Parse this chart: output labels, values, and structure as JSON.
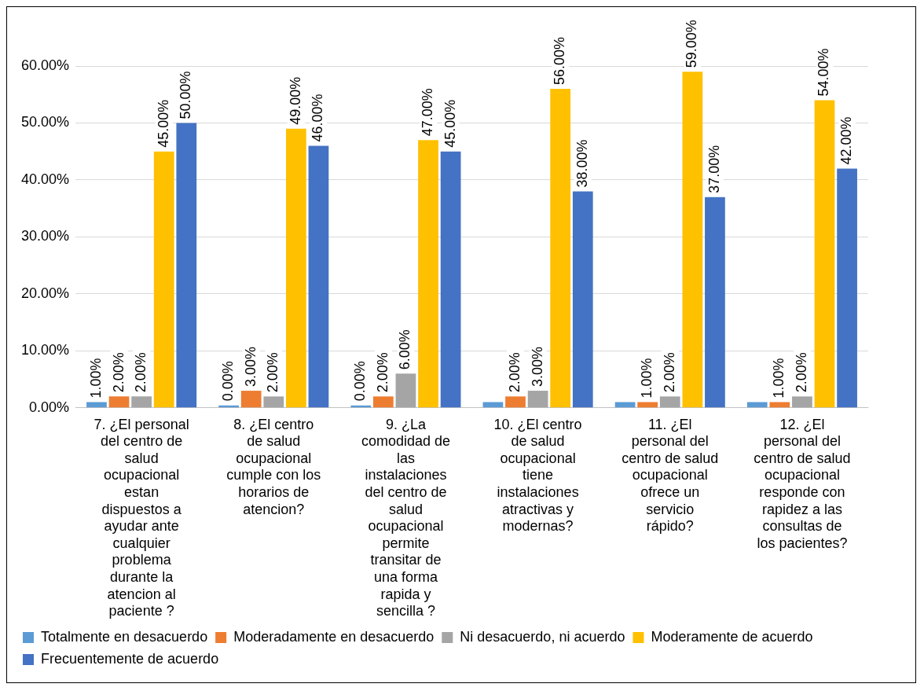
{
  "chart_data": {
    "type": "bar",
    "categories": [
      "7. ¿El personal del centro de salud ocupacional estan dispuestos a ayudar ante cualquier problema durante la atencion al paciente ?",
      "8. ¿El centro de salud ocupacional cumple con los horarios de atencion?",
      "9. ¿La comodidad de las instalaciones del centro de salud ocupacional permite transitar de una forma rapida y sencilla ?",
      "10. ¿El centro de salud ocupacional tiene instalaciones atractivas y modernas?",
      "11. ¿El personal del centro de salud ocupacional ofrece un servicio rápido?",
      "12. ¿El personal del centro de salud ocupacional responde con rapidez a las consultas de los pacientes?"
    ],
    "series": [
      {
        "name": "Totalmente en desacuerdo",
        "color": "#5b9bd5",
        "values": [
          1,
          0,
          0,
          1,
          1,
          1
        ],
        "value_labels": [
          "1.00%",
          "0.00%",
          "0.00%",
          null,
          null,
          null
        ]
      },
      {
        "name": "Moderadamente en desacuerdo",
        "color": "#ed7d31",
        "values": [
          2,
          3,
          2,
          2,
          1,
          1
        ],
        "value_labels": [
          "2.00%",
          "3.00%",
          "2.00%",
          "2.00%",
          "1.00%",
          "1.00%"
        ]
      },
      {
        "name": "Ni desacuerdo, ni acuerdo",
        "color": "#a5a5a5",
        "values": [
          2,
          2,
          6,
          3,
          2,
          2
        ],
        "value_labels": [
          "2.00%",
          "2.00%",
          "6.00%",
          "3.00%",
          "2.00%",
          "2.00%"
        ]
      },
      {
        "name": "Moderamente de acuerdo",
        "color": "#ffc000",
        "values": [
          45,
          49,
          47,
          56,
          59,
          54
        ],
        "value_labels": [
          "45.00%",
          "49.00%",
          "47.00%",
          "56.00%",
          "59.00%",
          "54.00%"
        ]
      },
      {
        "name": "Frecuentemente de acuerdo",
        "color": "#4472c4",
        "values": [
          50,
          46,
          45,
          38,
          37,
          42
        ],
        "value_labels": [
          "50.00%",
          "46.00%",
          "45.00%",
          "38.00%",
          "37.00%",
          "42.00%"
        ]
      }
    ],
    "ylim": [
      0,
      60
    ],
    "yticks": [
      {
        "value": 0,
        "label": "0.00%"
      },
      {
        "value": 10,
        "label": "10.00%"
      },
      {
        "value": 20,
        "label": "20.00%"
      },
      {
        "value": 30,
        "label": "30.00%"
      },
      {
        "value": 40,
        "label": "40.00%"
      },
      {
        "value": 50,
        "label": "50.00%"
      },
      {
        "value": 60,
        "label": "60.00%"
      }
    ],
    "grid": "y",
    "legend": "bottom"
  }
}
